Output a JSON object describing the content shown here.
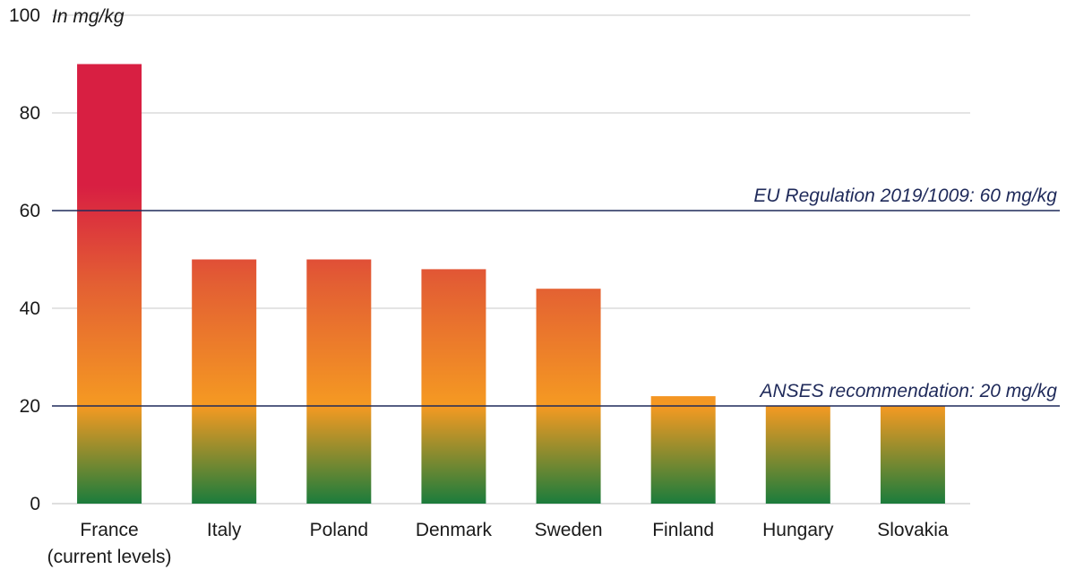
{
  "chart_data": {
    "type": "bar",
    "unit_label": "In mg/kg",
    "categories": [
      [
        "France",
        "(current levels)"
      ],
      [
        "Italy"
      ],
      [
        "Poland"
      ],
      [
        "Denmark"
      ],
      [
        "Sweden"
      ],
      [
        "Finland"
      ],
      [
        "Hungary"
      ],
      [
        "Slovakia"
      ]
    ],
    "values": [
      90,
      50,
      50,
      48,
      44,
      22,
      20,
      20
    ],
    "ylim": [
      0,
      100
    ],
    "yticks": [
      0,
      20,
      40,
      60,
      80,
      100
    ],
    "grid": true,
    "reference_lines": [
      {
        "value": 60,
        "label": "EU Regulation 2019/1009: 60 mg/kg"
      },
      {
        "value": 20,
        "label": "ANSES recommendation: 20 mg/kg"
      }
    ],
    "colors": {
      "high": "#d81f42",
      "mid_high": "#e35f33",
      "mid": "#f59a22",
      "low": "#1b7c3c",
      "reference_line": "#1f2a5a",
      "grid": "#c8c8c8"
    }
  }
}
